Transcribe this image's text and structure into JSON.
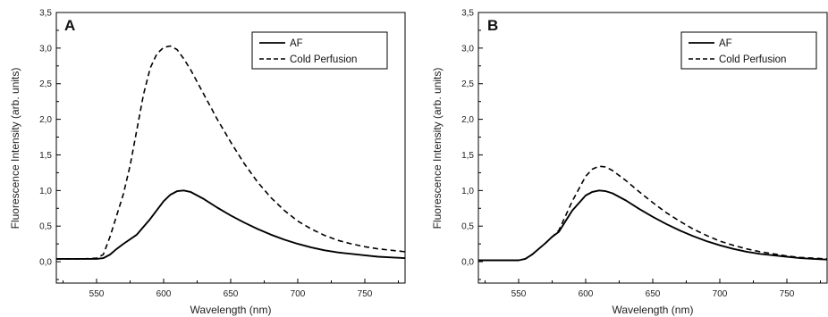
{
  "chart_data": [
    {
      "type": "line",
      "panel_label": "A",
      "xlabel": "Wavelength (nm)",
      "ylabel": "Fluorescence Intensity (arb. units)",
      "xlim": [
        520,
        780
      ],
      "ylim": [
        -0.3,
        3.5
      ],
      "xticks": [
        "550",
        "600",
        "650",
        "700",
        "750"
      ],
      "yticks": [
        "0,0",
        "0,5",
        "1,0",
        "1,5",
        "2,0",
        "2,5",
        "3,0",
        "3,5"
      ],
      "legend_position": "top-right",
      "series": [
        {
          "name": "AF",
          "style": "solid",
          "x": [
            520,
            540,
            550,
            555,
            560,
            565,
            570,
            580,
            590,
            600,
            605,
            610,
            615,
            620,
            630,
            640,
            650,
            660,
            670,
            680,
            690,
            700,
            710,
            720,
            730,
            740,
            750,
            760,
            770,
            780
          ],
          "y": [
            0.04,
            0.04,
            0.04,
            0.05,
            0.1,
            0.18,
            0.25,
            0.38,
            0.6,
            0.85,
            0.94,
            0.99,
            1.0,
            0.98,
            0.88,
            0.76,
            0.65,
            0.55,
            0.46,
            0.38,
            0.31,
            0.25,
            0.2,
            0.16,
            0.13,
            0.11,
            0.09,
            0.07,
            0.06,
            0.05
          ]
        },
        {
          "name": "Cold Perfusion",
          "style": "dashed",
          "x": [
            520,
            540,
            550,
            555,
            560,
            565,
            570,
            575,
            580,
            585,
            590,
            595,
            600,
            605,
            610,
            615,
            620,
            630,
            640,
            650,
            660,
            670,
            680,
            690,
            700,
            710,
            720,
            730,
            740,
            750,
            760,
            770,
            780
          ],
          "y": [
            0.04,
            0.04,
            0.05,
            0.1,
            0.35,
            0.65,
            0.95,
            1.35,
            1.85,
            2.35,
            2.72,
            2.92,
            3.01,
            3.03,
            2.98,
            2.85,
            2.7,
            2.35,
            2.0,
            1.68,
            1.38,
            1.12,
            0.9,
            0.72,
            0.57,
            0.46,
            0.37,
            0.3,
            0.25,
            0.21,
            0.18,
            0.16,
            0.14
          ]
        }
      ]
    },
    {
      "type": "line",
      "panel_label": "B",
      "xlabel": "Wavelength (nm)",
      "ylabel": "Fluorescence Intensity (arb. units)",
      "xlim": [
        520,
        780
      ],
      "ylim": [
        -0.3,
        3.5
      ],
      "xticks": [
        "550",
        "600",
        "650",
        "700",
        "750"
      ],
      "yticks": [
        "0,0",
        "0,5",
        "1,0",
        "1,5",
        "2,0",
        "2,5",
        "3,0",
        "3,5"
      ],
      "legend_position": "top-right",
      "series": [
        {
          "name": "AF",
          "style": "solid",
          "x": [
            520,
            540,
            550,
            555,
            560,
            565,
            570,
            575,
            580,
            590,
            600,
            605,
            610,
            615,
            620,
            630,
            640,
            650,
            660,
            670,
            680,
            690,
            700,
            710,
            720,
            730,
            740,
            750,
            760,
            770,
            780
          ],
          "y": [
            0.02,
            0.02,
            0.02,
            0.04,
            0.1,
            0.18,
            0.26,
            0.35,
            0.42,
            0.72,
            0.93,
            0.98,
            1.0,
            0.99,
            0.96,
            0.86,
            0.74,
            0.63,
            0.53,
            0.44,
            0.36,
            0.29,
            0.23,
            0.18,
            0.14,
            0.11,
            0.09,
            0.07,
            0.05,
            0.04,
            0.03
          ]
        },
        {
          "name": "Cold Perfusion",
          "style": "dashed",
          "x": [
            520,
            540,
            550,
            555,
            560,
            565,
            570,
            575,
            580,
            590,
            600,
            605,
            610,
            615,
            620,
            630,
            640,
            650,
            660,
            670,
            680,
            690,
            700,
            710,
            720,
            730,
            740,
            750,
            760,
            770,
            780
          ],
          "y": [
            0.02,
            0.02,
            0.02,
            0.04,
            0.1,
            0.18,
            0.26,
            0.35,
            0.44,
            0.85,
            1.2,
            1.3,
            1.34,
            1.33,
            1.28,
            1.14,
            0.98,
            0.83,
            0.69,
            0.57,
            0.46,
            0.37,
            0.29,
            0.23,
            0.18,
            0.14,
            0.11,
            0.08,
            0.06,
            0.05,
            0.04
          ]
        }
      ]
    }
  ]
}
